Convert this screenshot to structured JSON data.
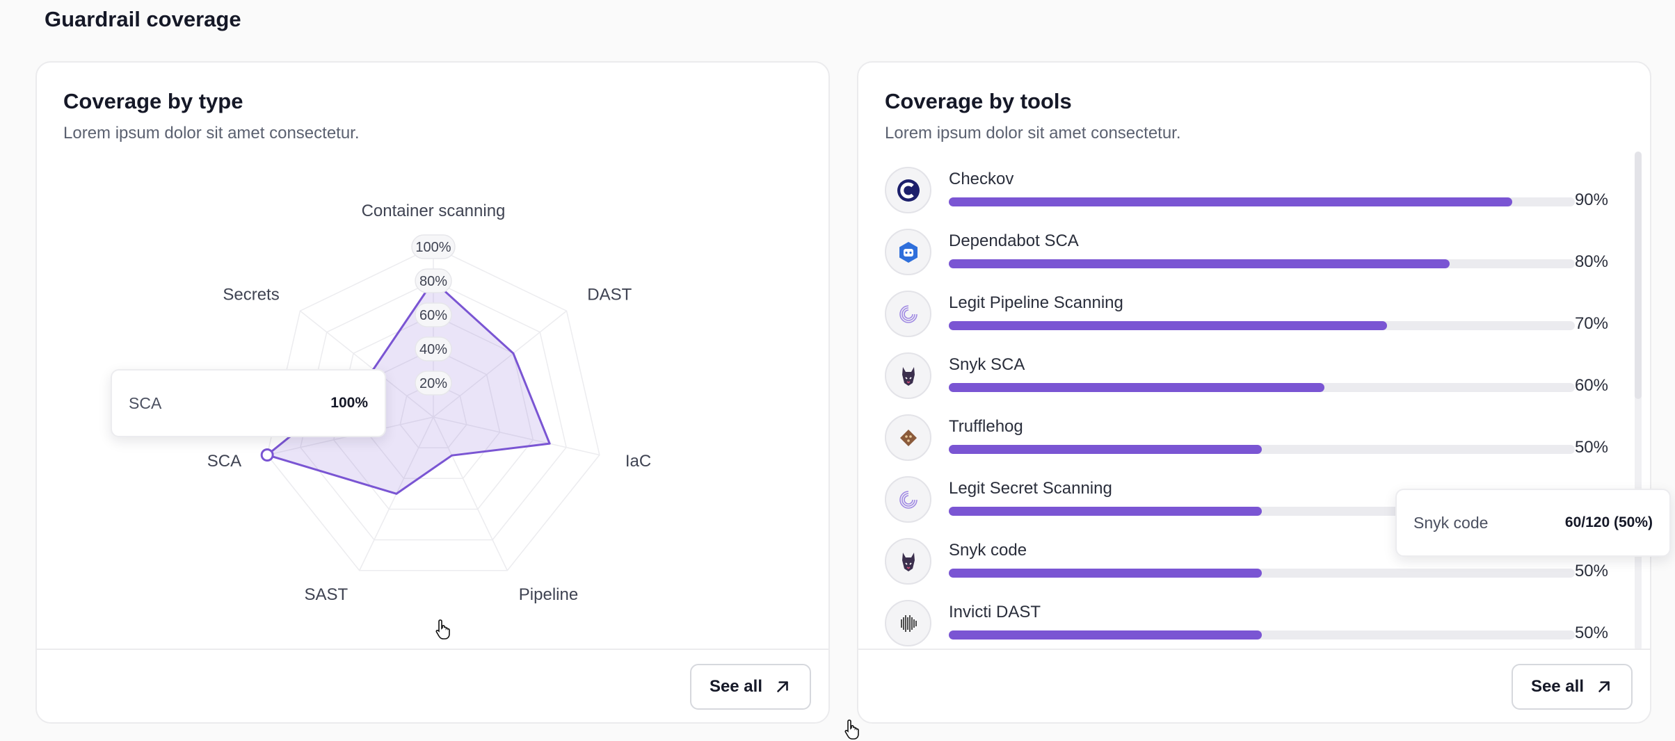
{
  "section": {
    "title": "Guardrail coverage"
  },
  "coverage_by_type": {
    "title": "Coverage by type",
    "subtitle": "Lorem ipsum dolor sit amet consectetur.",
    "see_all_label": "See all",
    "tooltip": {
      "name": "SCA",
      "value": "100%"
    },
    "accent": "#7a55d3",
    "chart_data": {
      "type": "radar",
      "axes": [
        "Container scanning",
        "DAST",
        "IaC",
        "Pipeline",
        "SAST",
        "SCA",
        "Secrets"
      ],
      "values": [
        80,
        60,
        70,
        25,
        50,
        100,
        45
      ],
      "rlim": [
        0,
        100
      ],
      "ticks": [
        "20%",
        "40%",
        "60%",
        "80%",
        "100%"
      ],
      "highlighted": "SCA"
    }
  },
  "coverage_by_tools": {
    "title": "Coverage by tools",
    "subtitle": "Lorem ipsum dolor sit amet consectetur.",
    "see_all_label": "See all",
    "tooltip": {
      "name": "Snyk code",
      "value": "60/120 (50%)"
    },
    "tools": [
      {
        "name": "Checkov",
        "value": 90,
        "pct": "90%",
        "icon": "checkov-icon"
      },
      {
        "name": "Dependabot SCA",
        "value": 80,
        "pct": "80%",
        "icon": "dependabot-icon"
      },
      {
        "name": "Legit Pipeline Scanning",
        "value": 70,
        "pct": "70%",
        "icon": "legit-icon"
      },
      {
        "name": "Snyk SCA",
        "value": 60,
        "pct": "60%",
        "icon": "snyk-icon"
      },
      {
        "name": "Trufflehog",
        "value": 50,
        "pct": "50%",
        "icon": "trufflehog-icon"
      },
      {
        "name": "Legit Secret Scanning",
        "value": 50,
        "pct": "50%",
        "icon": "legit-icon"
      },
      {
        "name": "Snyk code",
        "value": 50,
        "pct": "50%",
        "icon": "snyk-icon"
      },
      {
        "name": "Invicti DAST",
        "value": 50,
        "pct": "50%",
        "icon": "invicti-icon"
      }
    ]
  }
}
